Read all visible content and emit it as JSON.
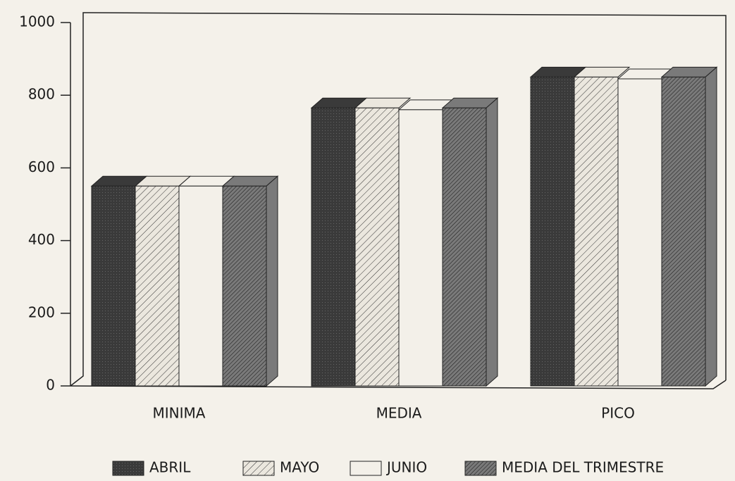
{
  "chart_data": {
    "type": "bar3d",
    "categories": [
      "MINIMA",
      "MEDIA",
      "PICO"
    ],
    "series": [
      {
        "name": "ABRIL",
        "color": "#3a3a3a",
        "values": [
          550,
          765,
          850
        ]
      },
      {
        "name": "MAYO",
        "color": "#ebe7de",
        "values": [
          550,
          765,
          850
        ]
      },
      {
        "name": "JUNIO",
        "color": "#f3f0e9",
        "values": [
          550,
          760,
          845
        ]
      },
      {
        "name": "MEDIA DEL TRIMESTRE",
        "color": "#7a7a7a",
        "values": [
          550,
          765,
          850
        ]
      }
    ],
    "ylim": [
      0,
      1000
    ],
    "yticks": [
      0,
      200,
      400,
      600,
      800,
      1000
    ],
    "grid": false,
    "legend": "bottom"
  }
}
